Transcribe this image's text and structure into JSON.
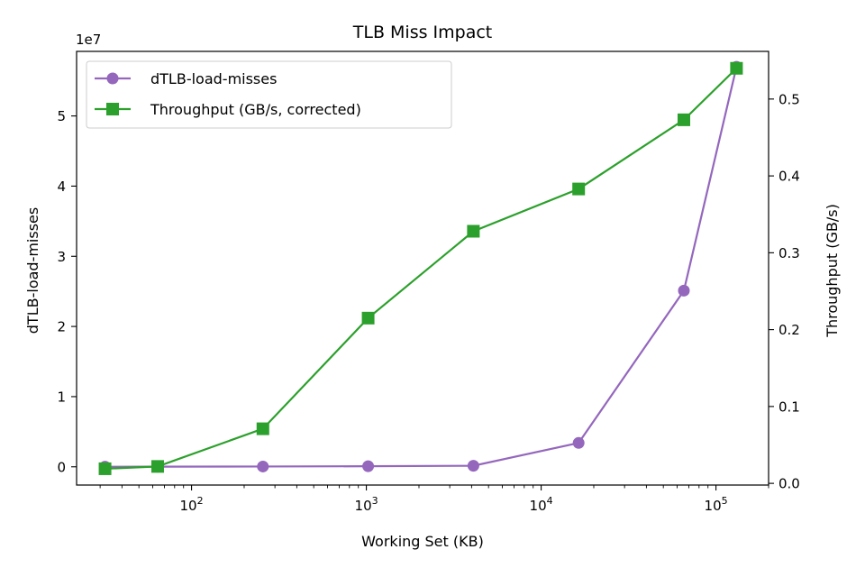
{
  "chart_data": {
    "type": "line",
    "title": "TLB Miss Impact",
    "xlabel": "Working Set (KB)",
    "ylabel": "dTLB-load-misses",
    "y2label": "Throughput (GB/s)",
    "xscale": "log",
    "x": [
      32,
      64,
      256,
      1024,
      4096,
      16384,
      65536,
      131072
    ],
    "xlim": [
      22,
      200000
    ],
    "x_ticks": [
      {
        "base": "10",
        "exp": "2",
        "value": 100
      },
      {
        "base": "10",
        "exp": "3",
        "value": 1000
      },
      {
        "base": "10",
        "exp": "4",
        "value": 10000
      },
      {
        "base": "10",
        "exp": "5",
        "value": 100000
      }
    ],
    "ylim": [
      -2600000,
      59200000
    ],
    "y_offset_label": "1e7",
    "y_ticks": [
      {
        "label": "0",
        "value": 0
      },
      {
        "label": "1",
        "value": 10000000
      },
      {
        "label": "2",
        "value": 20000000
      },
      {
        "label": "3",
        "value": 30000000
      },
      {
        "label": "4",
        "value": 40000000
      },
      {
        "label": "5",
        "value": 50000000
      }
    ],
    "y2lim": [
      -0.0022,
      0.562
    ],
    "y2_ticks": [
      {
        "label": "0.0",
        "value": 0.0
      },
      {
        "label": "0.1",
        "value": 0.1
      },
      {
        "label": "0.2",
        "value": 0.2
      },
      {
        "label": "0.3",
        "value": 0.3
      },
      {
        "label": "0.4",
        "value": 0.4
      },
      {
        "label": "0.5",
        "value": 0.5
      }
    ],
    "series": [
      {
        "name": "dTLB-load-misses",
        "axis": "left",
        "color": "#9467bd",
        "marker": "circle",
        "values": [
          10000,
          20000,
          40000,
          80000,
          150000,
          3400000,
          25100000,
          57000000
        ]
      },
      {
        "name": "Throughput (GB/s, corrected)",
        "axis": "right",
        "color": "#2ca02c",
        "marker": "square",
        "values": [
          0.019,
          0.022,
          0.071,
          0.215,
          0.328,
          0.383,
          0.473,
          0.54
        ]
      }
    ],
    "legend_position": "top-left",
    "grid": false
  }
}
